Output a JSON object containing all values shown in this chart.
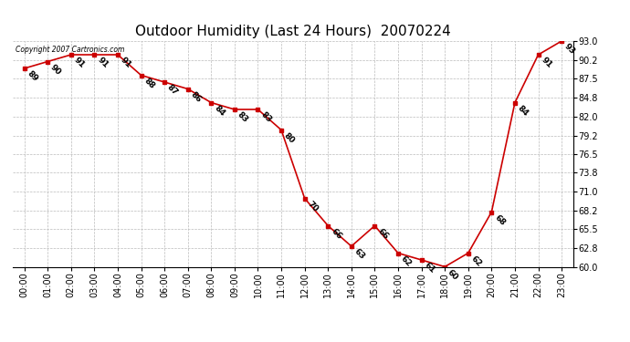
{
  "title": "Outdoor Humidity (Last 24 Hours)  20070224",
  "copyright": "Copyright 2007 Cartronics.com",
  "hours": [
    0,
    1,
    2,
    3,
    4,
    5,
    6,
    7,
    8,
    9,
    10,
    11,
    12,
    13,
    14,
    15,
    16,
    17,
    18,
    19,
    20,
    21,
    22,
    23
  ],
  "humidity": [
    89,
    90,
    91,
    91,
    91,
    88,
    87,
    86,
    84,
    83,
    83,
    80,
    70,
    66,
    63,
    66,
    62,
    61,
    60,
    62,
    68,
    84,
    91,
    93
  ],
  "xlabels": [
    "00:00",
    "01:00",
    "02:00",
    "03:00",
    "04:00",
    "05:00",
    "06:00",
    "07:00",
    "08:00",
    "09:00",
    "10:00",
    "11:00",
    "12:00",
    "13:00",
    "14:00",
    "15:00",
    "16:00",
    "17:00",
    "18:00",
    "19:00",
    "20:00",
    "21:00",
    "22:00",
    "23:00"
  ],
  "ylim": [
    60.0,
    93.0
  ],
  "yticks": [
    60.0,
    62.8,
    65.5,
    68.2,
    71.0,
    73.8,
    76.5,
    79.2,
    82.0,
    84.8,
    87.5,
    90.2,
    93.0
  ],
  "line_color": "#cc0000",
  "marker_color": "#cc0000",
  "bg_color": "#ffffff",
  "grid_color": "#bbbbbb",
  "title_fontsize": 11,
  "label_fontsize": 7,
  "annot_fontsize": 6.5,
  "copyright_fontsize": 5.5
}
